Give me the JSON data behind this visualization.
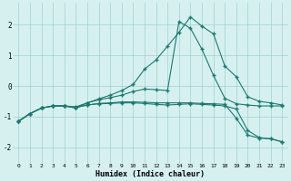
{
  "x": [
    0,
    1,
    2,
    3,
    4,
    5,
    6,
    7,
    8,
    9,
    10,
    11,
    12,
    13,
    14,
    15,
    16,
    17,
    18,
    19,
    20,
    21,
    22,
    23
  ],
  "line1": [
    -1.15,
    -0.9,
    -0.72,
    -0.65,
    -0.65,
    -0.72,
    -0.55,
    -0.42,
    -0.3,
    -0.15,
    0.05,
    0.55,
    0.85,
    1.3,
    1.75,
    2.25,
    1.95,
    1.7,
    0.65,
    0.3,
    -0.35,
    -0.5,
    -0.55,
    -0.62
  ],
  "line2": [
    -1.15,
    -0.9,
    -0.72,
    -0.65,
    -0.65,
    -0.68,
    -0.55,
    -0.45,
    -0.38,
    -0.3,
    -0.18,
    -0.1,
    -0.12,
    -0.15,
    2.1,
    1.88,
    1.2,
    0.35,
    -0.4,
    -0.58,
    -0.62,
    -0.65,
    -0.65,
    -0.65
  ],
  "line3": [
    -1.15,
    -0.9,
    -0.72,
    -0.65,
    -0.65,
    -0.7,
    -0.62,
    -0.57,
    -0.55,
    -0.52,
    -0.52,
    -0.53,
    -0.55,
    -0.55,
    -0.55,
    -0.55,
    -0.57,
    -0.58,
    -0.6,
    -1.05,
    -1.6,
    -1.7,
    -1.72,
    -1.82
  ],
  "line4": [
    -1.15,
    -0.9,
    -0.72,
    -0.65,
    -0.65,
    -0.7,
    -0.62,
    -0.58,
    -0.57,
    -0.55,
    -0.55,
    -0.57,
    -0.6,
    -0.62,
    -0.6,
    -0.58,
    -0.6,
    -0.62,
    -0.65,
    -0.75,
    -1.45,
    -1.68,
    -1.72,
    -1.82
  ],
  "line_color": "#1a7a6e",
  "bg_color": "#d6f0f0",
  "grid_color": "#a0d0d0",
  "xlabel": "Humidex (Indice chaleur)",
  "ylim": [
    -2.5,
    2.7
  ],
  "xlim": [
    -0.5,
    23.5
  ],
  "yticks": [
    -2,
    -1,
    0,
    1,
    2
  ],
  "xticks": [
    0,
    1,
    2,
    3,
    4,
    5,
    6,
    7,
    8,
    9,
    10,
    11,
    12,
    13,
    14,
    15,
    16,
    17,
    18,
    19,
    20,
    21,
    22,
    23
  ]
}
